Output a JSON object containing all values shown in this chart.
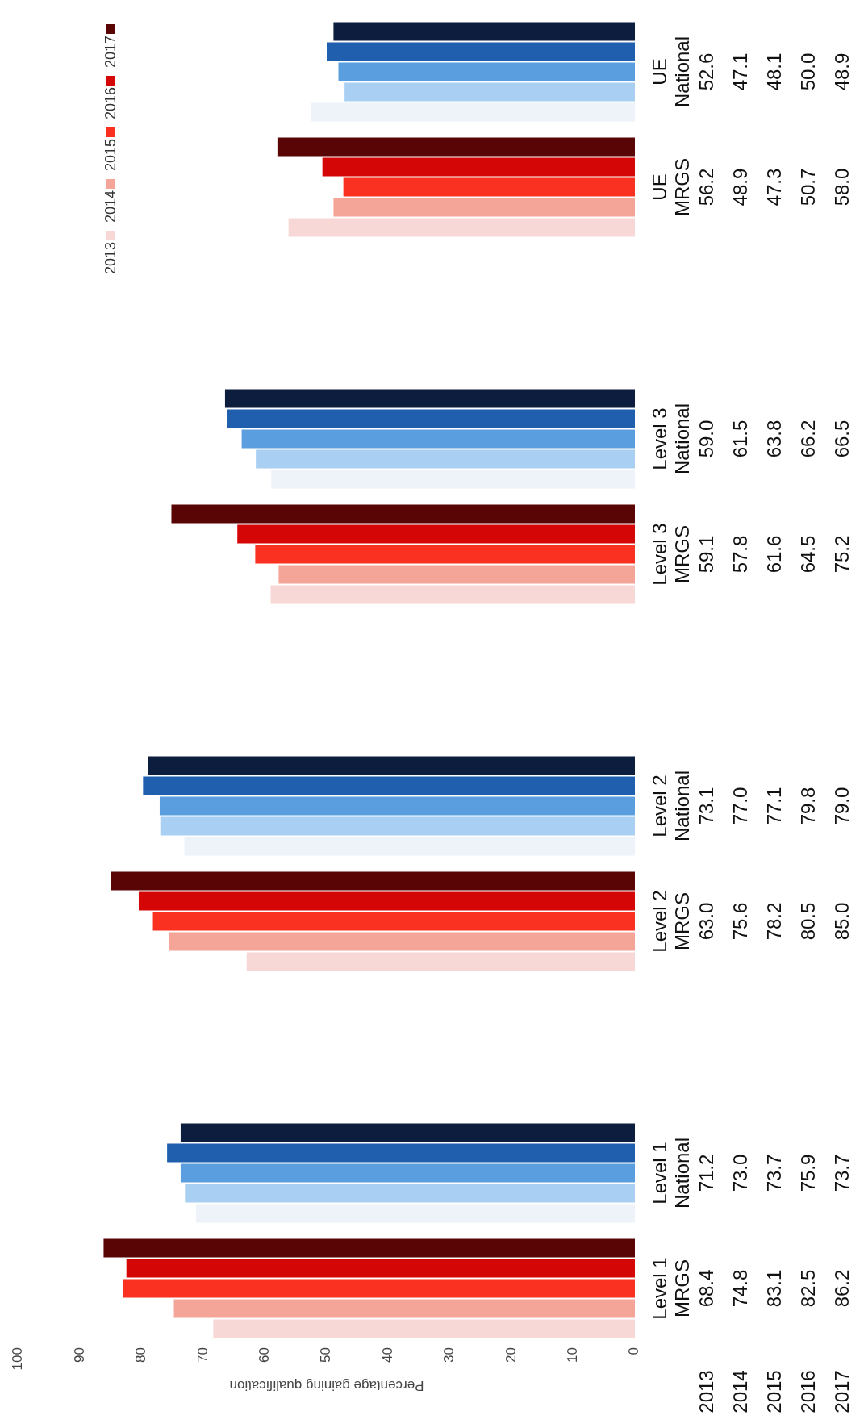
{
  "chart_data": {
    "type": "bar",
    "orientation": "horizontal",
    "xlabel": "Percentage gaining qualification",
    "categories": [
      "UE\nNational",
      "UE\nMRGS",
      "Level 3\nNational",
      "Level 3\nMRGS",
      "Level 2\nNational",
      "Level 2\nMRGS",
      "Level 1\nNational",
      "Level 1\nMRGS"
    ],
    "xlim": [
      100,
      0
    ],
    "xticks": [
      100,
      90,
      80,
      70,
      60,
      50,
      40,
      30,
      20,
      10,
      0
    ],
    "grid": false,
    "legend": "top left",
    "series": [
      {
        "name": "2013",
        "color": "#f7d8d6",
        "colors": [
          "#eef3fa",
          "#f7d8d6",
          "#eef3fa",
          "#f7d8d6",
          "#eef3fa",
          "#f7d8d6",
          "#eef3fa",
          "#f7d8d6"
        ],
        "values": [
          52.6,
          56.2,
          59.0,
          59.1,
          73.1,
          63.0,
          71.2,
          68.4
        ],
        "value_labels": [
          "52.6",
          "56.2",
          "59.0",
          "59.1",
          "73.1",
          "63.0",
          "71.2",
          "68.4"
        ]
      },
      {
        "name": "2014",
        "color": "#f4a597",
        "colors": [
          "#a9d0f3",
          "#f4a597",
          "#a9d0f3",
          "#f4a597",
          "#a9d0f3",
          "#f4a597",
          "#a9d0f3",
          "#f4a597"
        ],
        "values": [
          47.1,
          48.9,
          61.5,
          57.8,
          77.0,
          75.6,
          73.0,
          74.8
        ],
        "value_labels": [
          "47.1",
          "48.9",
          "61.5",
          "57.8",
          "77.0",
          "75.6",
          "73.0",
          "74.8"
        ]
      },
      {
        "name": "2015",
        "color": "#fa3020",
        "colors": [
          "#5b9ee0",
          "#fa3020",
          "#5b9ee0",
          "#fa3020",
          "#5b9ee0",
          "#fa3020",
          "#5b9ee0",
          "#fa3020"
        ],
        "values": [
          48.1,
          47.3,
          63.8,
          61.6,
          77.1,
          78.2,
          73.7,
          83.1
        ],
        "value_labels": [
          "48.1",
          "47.3",
          "63.8",
          "61.6",
          "77.1",
          "78.2",
          "73.7",
          "83.1"
        ]
      },
      {
        "name": "2016",
        "color": "#d40606",
        "colors": [
          "#1f5fae",
          "#d40606",
          "#1f5fae",
          "#d40606",
          "#1f5fae",
          "#d40606",
          "#1f5fae",
          "#d40606"
        ],
        "values": [
          50.0,
          50.7,
          66.2,
          64.5,
          79.8,
          80.5,
          75.9,
          82.5
        ],
        "value_labels": [
          "50.0",
          "50.7",
          "66.2",
          "64.5",
          "79.8",
          "80.5",
          "75.9",
          "82.5"
        ]
      },
      {
        "name": "2017",
        "color": "#5a0505",
        "colors": [
          "#0d1d3e",
          "#5a0505",
          "#0d1d3e",
          "#5a0505",
          "#0d1d3e",
          "#5a0505",
          "#0d1d3e",
          "#5a0505"
        ],
        "values": [
          48.9,
          58.0,
          66.5,
          75.2,
          79.0,
          85.0,
          73.7,
          86.2
        ],
        "value_labels": [
          "48.9",
          "58.0",
          "66.5",
          "75.2",
          "79.0",
          "85.0",
          "73.7",
          "86.2"
        ]
      }
    ]
  }
}
